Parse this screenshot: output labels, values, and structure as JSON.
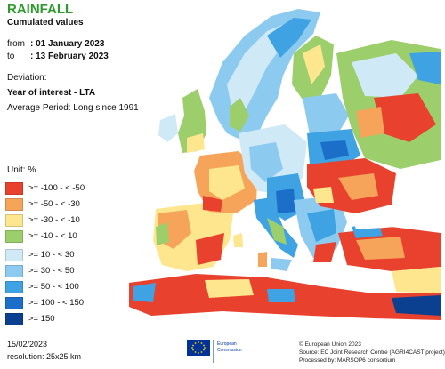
{
  "header": {
    "title": "RAINFALL",
    "subtitle": "Cumulated values",
    "from_label": "from",
    "from_value": ": 01 January 2023",
    "to_label": "to",
    "to_value": ": 13 February 2023",
    "deviation_label": "Deviation:",
    "year_of_interest": "Year of interest - LTA",
    "average_period": "Average Period: Long since 1991"
  },
  "legend": {
    "unit": "Unit:  %",
    "items": [
      {
        "label": ">= -100 - < -50",
        "color": "#e8412d"
      },
      {
        "label": ">= -50 - < -30",
        "color": "#f6a45a"
      },
      {
        "label": ">= -30 - < -10",
        "color": "#fde68e"
      },
      {
        "label": ">= -10 - < 10",
        "color": "#9ccf6c"
      },
      {
        "label": ">= 10 - < 30",
        "color": "#cfe9f7"
      },
      {
        "label": ">= 30 - < 50",
        "color": "#8ccbef"
      },
      {
        "label": ">= 50 - < 100",
        "color": "#3fa2e3"
      },
      {
        "label": ">= 100 - < 150",
        "color": "#1b6fc9"
      },
      {
        "label": ">= 150",
        "color": "#0b3f8f"
      }
    ]
  },
  "footer": {
    "date": "15/02/2023",
    "resolution": "resolution: 25x25 km",
    "copyright": "© European Union 2023",
    "source": "Source: EC Joint Research Centre (AGRI4CAST project)",
    "processed": "Processed by: MARSOP6 consortium",
    "logo_text_1": "European",
    "logo_text_2": "Commission"
  },
  "colors": {
    "sea": "#ffffff",
    "title_green": "#2e9a2e",
    "eu_blue": "#003399",
    "eu_yellow": "#ffcc00"
  }
}
